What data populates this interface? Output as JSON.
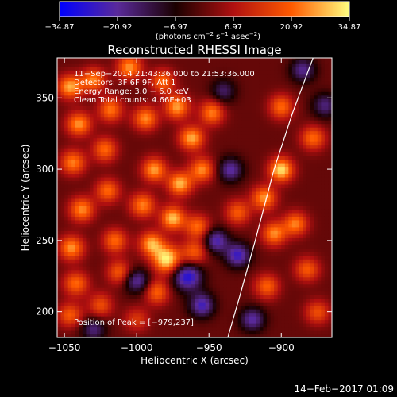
{
  "chart_data": {
    "type": "heatmap",
    "title": "Reconstructed RHESSI Image",
    "xlabel": "Heliocentric X (arcsec)",
    "ylabel": "Heliocentric Y (arcsec)",
    "xlim": [
      -1055,
      -865
    ],
    "ylim": [
      182,
      378
    ],
    "x_ticks": [
      {
        "value": -1050,
        "label": "−1050"
      },
      {
        "value": -1000,
        "label": "−1000"
      },
      {
        "value": -950,
        "label": "−950"
      },
      {
        "value": -900,
        "label": "−900"
      }
    ],
    "y_ticks": [
      {
        "value": 200,
        "label": "200"
      },
      {
        "value": 250,
        "label": "250"
      },
      {
        "value": 300,
        "label": "300"
      },
      {
        "value": 350,
        "label": "350"
      }
    ],
    "colorbar": {
      "min": -34.87,
      "max": 34.87,
      "tick_labels": [
        "−34.87",
        "−20.92",
        "−6.97",
        "6.97",
        "20.92",
        "34.87"
      ],
      "units_html": "(photons cm<tspan baseline-shift='super' font-size='7'>−2</tspan> s<tspan baseline-shift='super' font-size='7'>−1</tspan> asec<tspan baseline-shift='super' font-size='7'>−2</tspan>)",
      "colors": [
        "#0000ff",
        "#5a2a9a",
        "#1a0000",
        "#b01010",
        "#ff5a00",
        "#ffff80"
      ]
    },
    "info_lines": [
      "11−Sep−2014 21:43:36.000 to 21:53:36.000",
      "Detectors: 3F 6F 9F, Att 1",
      "Energy Range: 3.0 − 6.0 keV",
      "Clean    Total counts: 4.66E+03"
    ],
    "peak_label": "Position of Peak = [−979,237]",
    "peak": {
      "x": -979,
      "y": 237
    },
    "limb_curve": [
      [
        -937,
        182
      ],
      [
        -929,
        210
      ],
      [
        -918,
        250
      ],
      [
        -905,
        300
      ],
      [
        -892,
        340
      ],
      [
        -878,
        378
      ]
    ],
    "blobs": [
      {
        "x": -1046,
        "y": 358,
        "r": 6,
        "v": 28
      },
      {
        "x": -1030,
        "y": 363,
        "r": 6,
        "v": 24
      },
      {
        "x": -1005,
        "y": 372,
        "r": 6,
        "v": 26
      },
      {
        "x": -982,
        "y": 362,
        "r": 6,
        "v": 22
      },
      {
        "x": -1040,
        "y": 332,
        "r": 6,
        "v": 26
      },
      {
        "x": -1018,
        "y": 342,
        "r": 6,
        "v": 23
      },
      {
        "x": -994,
        "y": 336,
        "r": 6,
        "v": 25
      },
      {
        "x": -972,
        "y": 344,
        "r": 6,
        "v": 27
      },
      {
        "x": -962,
        "y": 322,
        "r": 6,
        "v": 28
      },
      {
        "x": -948,
        "y": 340,
        "r": 6,
        "v": 24
      },
      {
        "x": -1044,
        "y": 305,
        "r": 6,
        "v": 24
      },
      {
        "x": -1022,
        "y": 314,
        "r": 6,
        "v": 22
      },
      {
        "x": -988,
        "y": 300,
        "r": 6,
        "v": 27
      },
      {
        "x": -970,
        "y": 290,
        "r": 6,
        "v": 29
      },
      {
        "x": -955,
        "y": 300,
        "r": 6,
        "v": 25
      },
      {
        "x": -1038,
        "y": 272,
        "r": 6,
        "v": 25
      },
      {
        "x": -1020,
        "y": 285,
        "r": 6,
        "v": 22
      },
      {
        "x": -996,
        "y": 275,
        "r": 6,
        "v": 24
      },
      {
        "x": -975,
        "y": 266,
        "r": 6,
        "v": 30
      },
      {
        "x": -958,
        "y": 260,
        "r": 6,
        "v": 22
      },
      {
        "x": -1045,
        "y": 245,
        "r": 6,
        "v": 26
      },
      {
        "x": -1015,
        "y": 250,
        "r": 6,
        "v": 22
      },
      {
        "x": -990,
        "y": 248,
        "r": 6,
        "v": 27
      },
      {
        "x": -979,
        "y": 237,
        "r": 7,
        "v": 34
      },
      {
        "x": -960,
        "y": 242,
        "r": 6,
        "v": 20
      },
      {
        "x": -1042,
        "y": 220,
        "r": 6,
        "v": 22
      },
      {
        "x": -1012,
        "y": 228,
        "r": 6,
        "v": 20
      },
      {
        "x": -986,
        "y": 214,
        "r": 6,
        "v": 21
      },
      {
        "x": -1046,
        "y": 198,
        "r": 6,
        "v": 20
      },
      {
        "x": -1025,
        "y": 205,
        "r": 6,
        "v": 18
      },
      {
        "x": -900,
        "y": 300,
        "r": 6,
        "v": 33
      },
      {
        "x": -912,
        "y": 280,
        "r": 6,
        "v": 26
      },
      {
        "x": -890,
        "y": 262,
        "r": 6,
        "v": 24
      },
      {
        "x": -905,
        "y": 255,
        "r": 6,
        "v": 25
      },
      {
        "x": -878,
        "y": 322,
        "r": 6,
        "v": 22
      },
      {
        "x": -900,
        "y": 344,
        "r": 6,
        "v": 22
      },
      {
        "x": -882,
        "y": 230,
        "r": 6,
        "v": 20
      },
      {
        "x": -910,
        "y": 218,
        "r": 6,
        "v": 21
      },
      {
        "x": -875,
        "y": 200,
        "r": 6,
        "v": 18
      },
      {
        "x": -930,
        "y": 270,
        "r": 6,
        "v": 20
      },
      {
        "x": -1000,
        "y": 195,
        "r": 6,
        "v": 14
      },
      {
        "x": -955,
        "y": 205,
        "r": 6,
        "v": -25
      },
      {
        "x": -965,
        "y": 225,
        "r": 7,
        "v": -30
      },
      {
        "x": -945,
        "y": 250,
        "r": 6,
        "v": -24
      },
      {
        "x": -935,
        "y": 300,
        "r": 6,
        "v": -22
      },
      {
        "x": -930,
        "y": 240,
        "r": 6,
        "v": -26
      },
      {
        "x": -920,
        "y": 195,
        "r": 6,
        "v": -22
      },
      {
        "x": -1000,
        "y": 222,
        "r": 6,
        "v": -22
      },
      {
        "x": -1030,
        "y": 188,
        "r": 6,
        "v": -18
      },
      {
        "x": -940,
        "y": 355,
        "r": 6,
        "v": -16
      },
      {
        "x": -885,
        "y": 370,
        "r": 6,
        "v": -20
      },
      {
        "x": -870,
        "y": 345,
        "r": 6,
        "v": -18
      }
    ]
  },
  "footer": {
    "timestamp": "14−Feb−2017 01:09"
  }
}
